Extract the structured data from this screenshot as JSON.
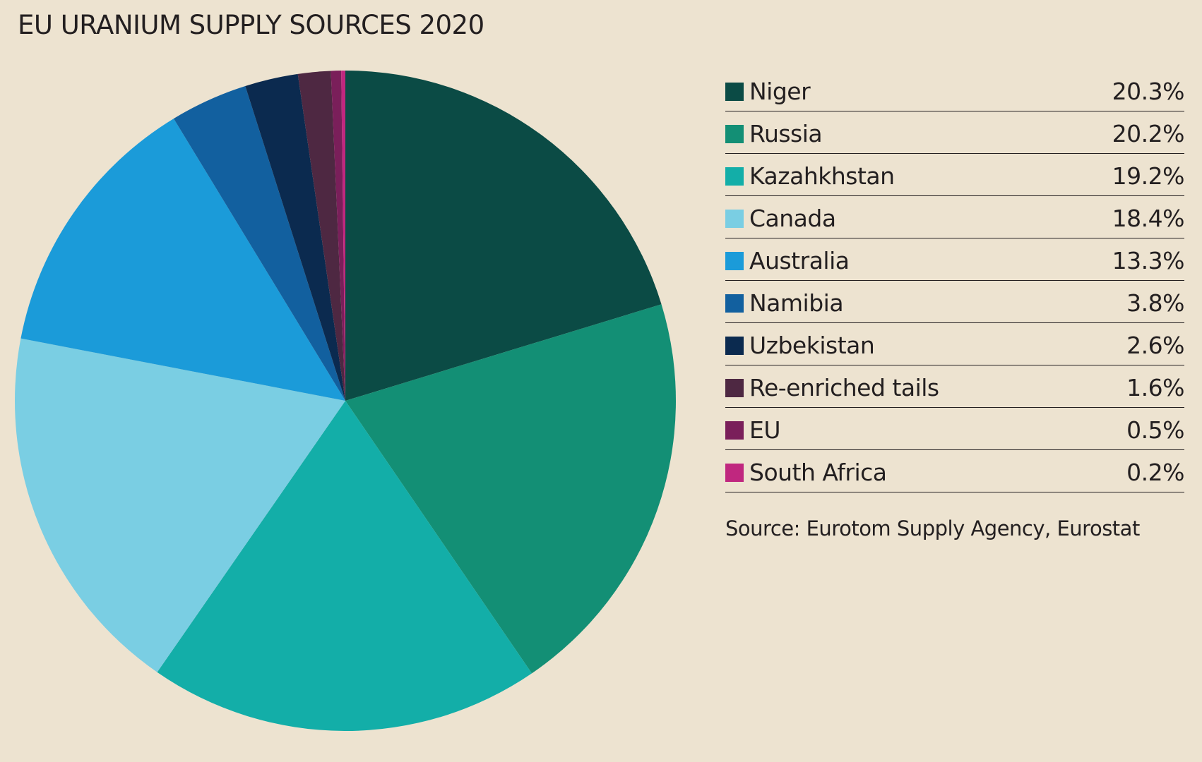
{
  "title": "EU URANIUM SUPPLY SOURCES 2020",
  "source": "Source: Eurotom Supply Agency, Eurostat",
  "chart_data": {
    "type": "pie",
    "title": "EU URANIUM SUPPLY SOURCES 2020",
    "legend_position": "right",
    "start_angle": "12 o'clock, clockwise",
    "slices": [
      {
        "label": "Niger",
        "value": 20.3,
        "display": "20.3%",
        "color": "#0b4b45"
      },
      {
        "label": "Russia",
        "value": 20.2,
        "display": "20.2%",
        "color": "#138f75"
      },
      {
        "label": "Kazahkhstan",
        "value": 19.2,
        "display": "19.2%",
        "color": "#13aea8"
      },
      {
        "label": "Canada",
        "value": 18.4,
        "display": "18.4%",
        "color": "#7acee3"
      },
      {
        "label": "Australia",
        "value": 13.3,
        "display": "13.3%",
        "color": "#1b9bd9"
      },
      {
        "label": "Namibia",
        "value": 3.8,
        "display": "3.8%",
        "color": "#12609f"
      },
      {
        "label": "Uzbekistan",
        "value": 2.6,
        "display": "2.6%",
        "color": "#0b2a4f"
      },
      {
        "label": "Re-enriched tails",
        "value": 1.6,
        "display": "1.6%",
        "color": "#4e2842"
      },
      {
        "label": "EU",
        "value": 0.5,
        "display": "0.5%",
        "color": "#7a1f5a"
      },
      {
        "label": "South Africa",
        "value": 0.2,
        "display": "0.2%",
        "color": "#c0277f"
      }
    ]
  }
}
